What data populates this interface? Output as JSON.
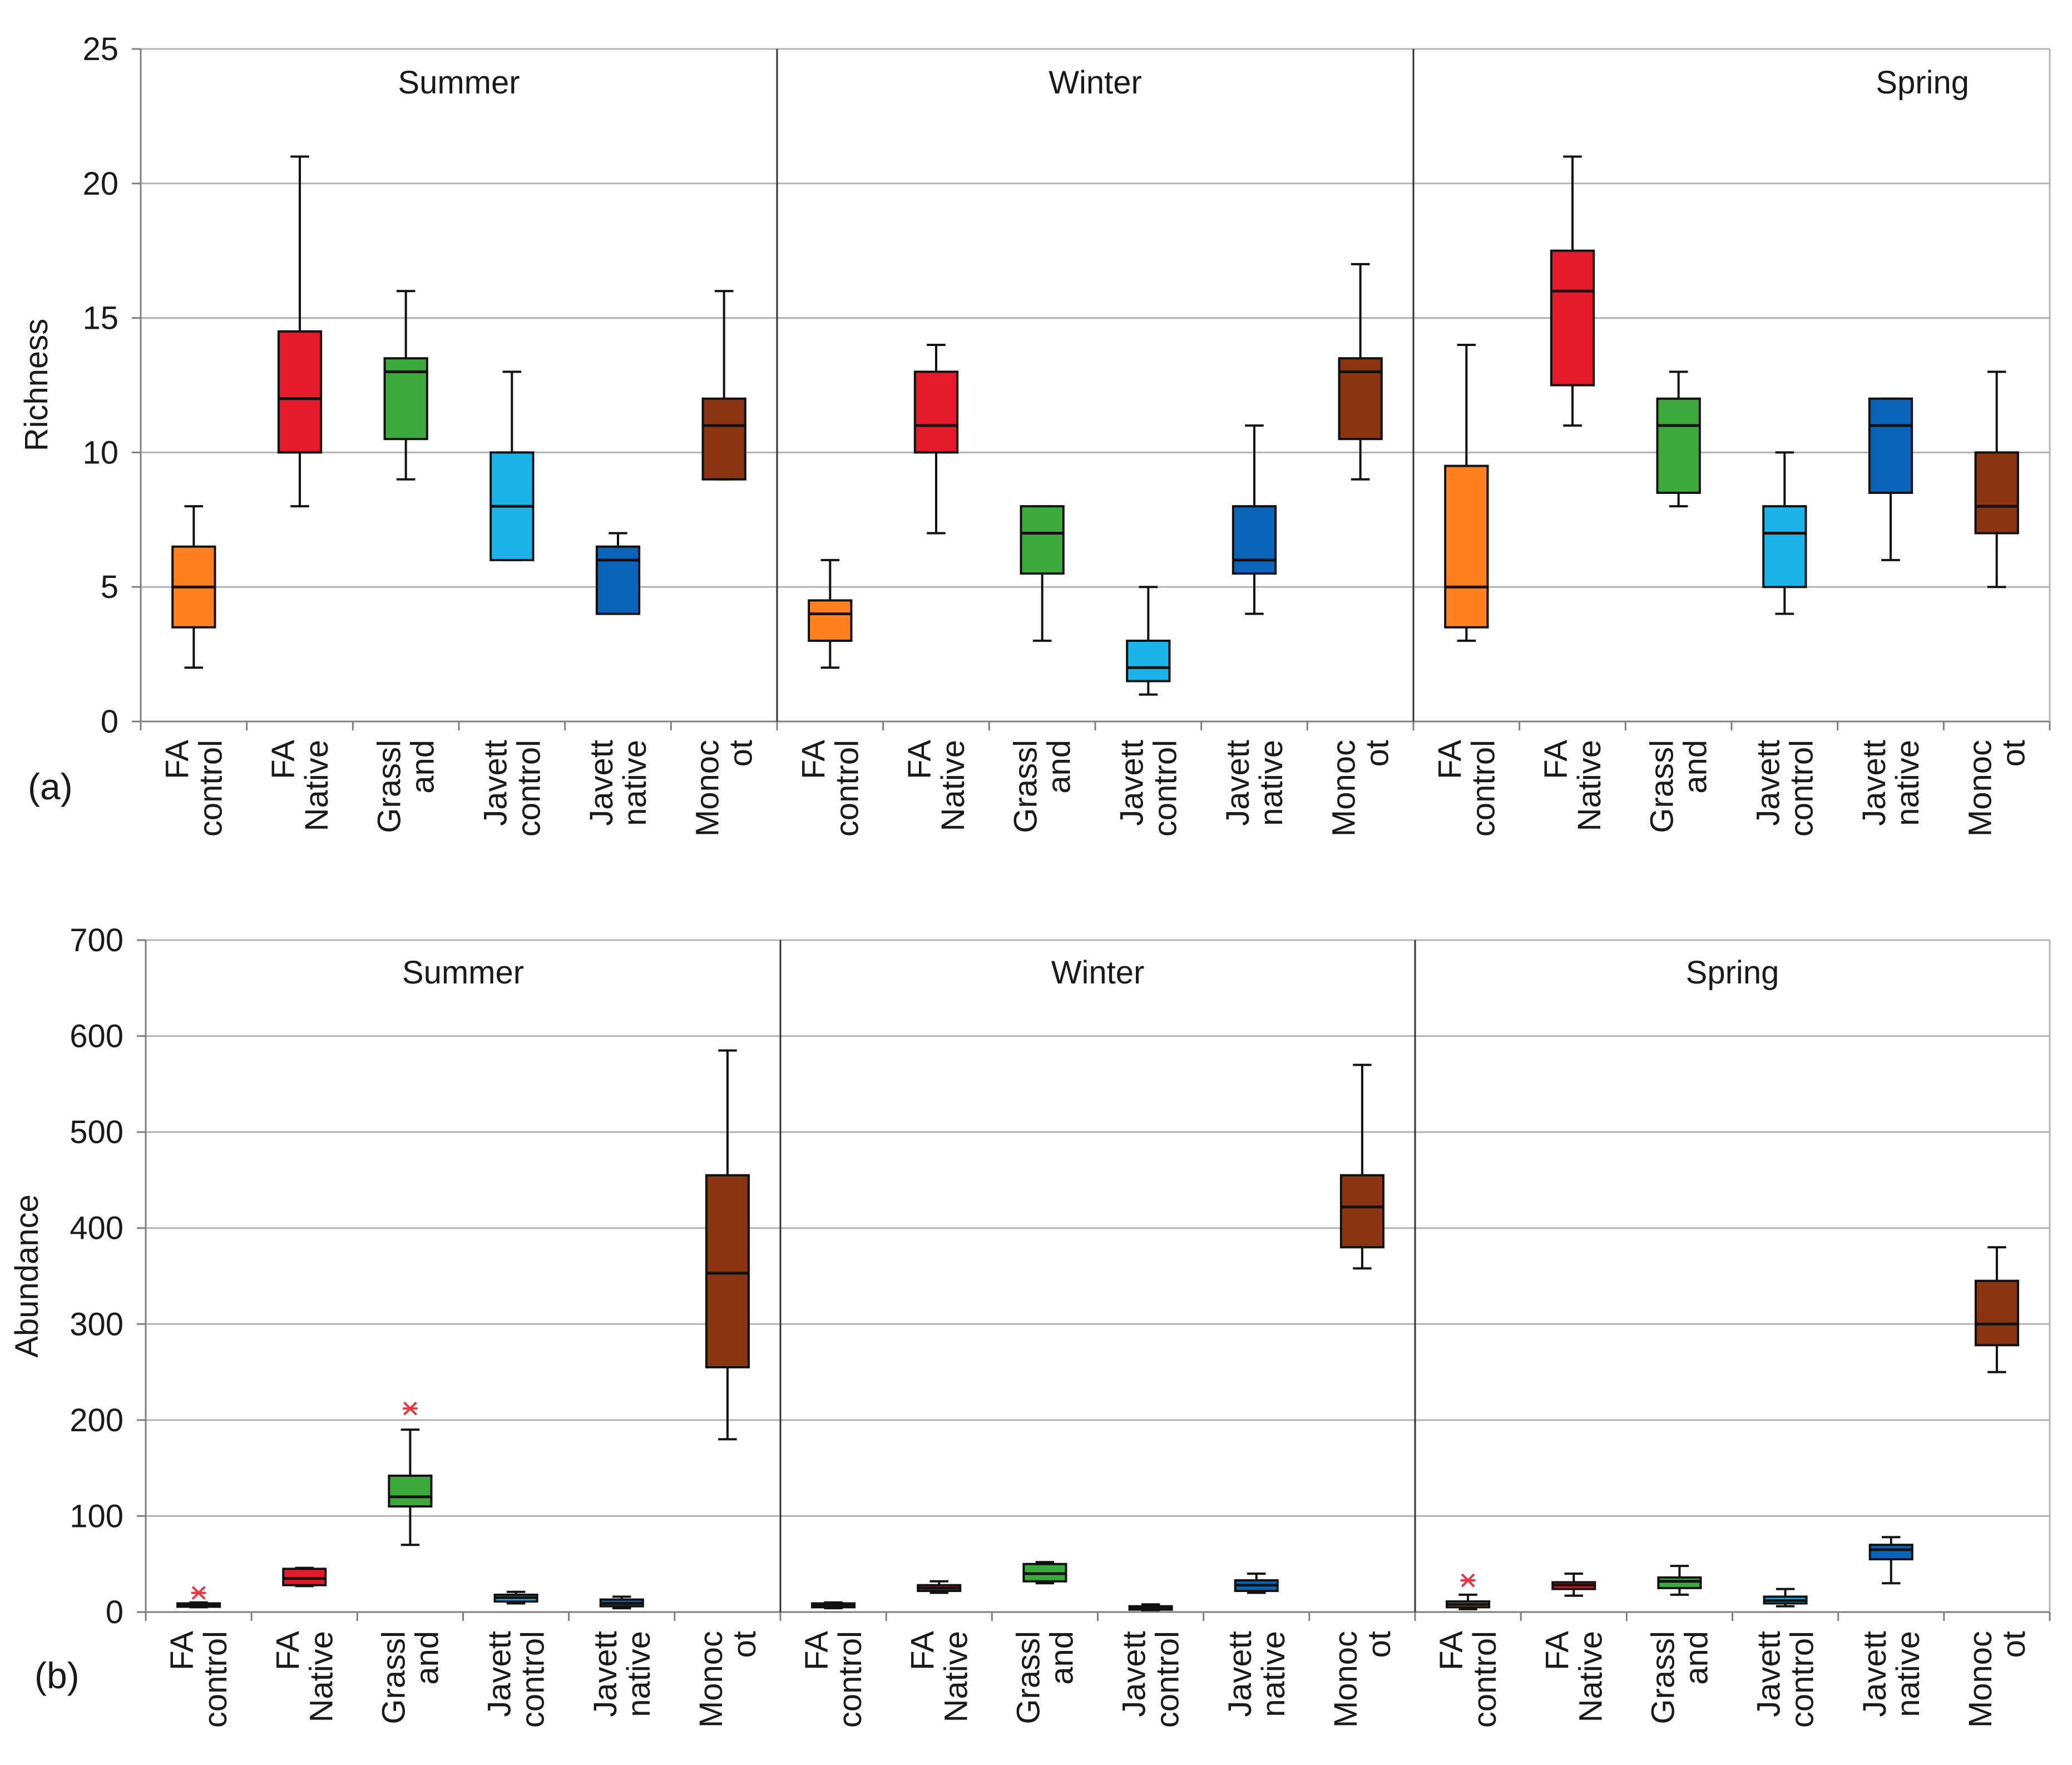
{
  "chart_data": [
    {
      "type": "boxplot",
      "panel_label": "(a)",
      "ylabel": "Richness",
      "ylim": [
        0,
        25
      ],
      "yticks": [
        "0",
        "5",
        "10",
        "15",
        "20",
        "25"
      ],
      "ytick_values": [
        0,
        5,
        10,
        15,
        20,
        25
      ],
      "grid": true,
      "categories": [
        [
          "FA",
          "control"
        ],
        [
          "FA",
          "Native"
        ],
        [
          "Grassl",
          "and"
        ],
        [
          "Javett",
          "control"
        ],
        [
          "Javett",
          "native"
        ],
        [
          "Monoc",
          "ot"
        ]
      ],
      "category_colors": [
        "#ff8020",
        "#e31a2a",
        "#3caa3c",
        "#1cb4e8",
        "#0a64b9",
        "#8b3412"
      ],
      "groups": [
        {
          "name": "Summer",
          "boxes": [
            {
              "min": 2,
              "q1": 3.5,
              "median": 5,
              "q3": 6.5,
              "max": 8,
              "outliers": []
            },
            {
              "min": 8,
              "q1": 10,
              "median": 12,
              "q3": 14.5,
              "max": 21,
              "outliers": []
            },
            {
              "min": 9,
              "q1": 10.5,
              "median": 13,
              "q3": 13.5,
              "max": 16,
              "outliers": []
            },
            {
              "min": 6,
              "q1": 6,
              "median": 8,
              "q3": 10,
              "max": 13,
              "outliers": []
            },
            {
              "min": 4,
              "q1": 4,
              "median": 6,
              "q3": 6.5,
              "max": 7,
              "outliers": []
            },
            {
              "min": 9,
              "q1": 9,
              "median": 11,
              "q3": 12,
              "max": 16,
              "outliers": []
            }
          ]
        },
        {
          "name": "Winter",
          "boxes": [
            {
              "min": 2,
              "q1": 3,
              "median": 4,
              "q3": 4.5,
              "max": 6,
              "outliers": []
            },
            {
              "min": 7,
              "q1": 10,
              "median": 11,
              "q3": 13,
              "max": 14,
              "outliers": []
            },
            {
              "min": 3,
              "q1": 5.5,
              "median": 7,
              "q3": 8,
              "max": 8,
              "outliers": []
            },
            {
              "min": 1,
              "q1": 1.5,
              "median": 2,
              "q3": 3,
              "max": 5,
              "outliers": []
            },
            {
              "min": 4,
              "q1": 5.5,
              "median": 6,
              "q3": 8,
              "max": 11,
              "outliers": []
            },
            {
              "min": 9,
              "q1": 10.5,
              "median": 13,
              "q3": 13.5,
              "max": 17,
              "outliers": []
            }
          ]
        },
        {
          "name": "Spring",
          "boxes": [
            {
              "min": 3,
              "q1": 3.5,
              "median": 5,
              "q3": 9.5,
              "max": 14,
              "outliers": []
            },
            {
              "min": 11,
              "q1": 12.5,
              "median": 16,
              "q3": 17.5,
              "max": 21,
              "outliers": []
            },
            {
              "min": 8,
              "q1": 8.5,
              "median": 11,
              "q3": 12,
              "max": 13,
              "outliers": []
            },
            {
              "min": 4,
              "q1": 5,
              "median": 7,
              "q3": 8,
              "max": 10,
              "outliers": []
            },
            {
              "min": 6,
              "q1": 8.5,
              "median": 11,
              "q3": 12,
              "max": 12,
              "outliers": []
            },
            {
              "min": 5,
              "q1": 7,
              "median": 8,
              "q3": 10,
              "max": 13,
              "outliers": []
            }
          ]
        }
      ]
    },
    {
      "type": "boxplot",
      "panel_label": "(b)",
      "ylabel": "Abundance",
      "ylim": [
        0,
        700
      ],
      "yticks": [
        "0",
        "100",
        "200",
        "300",
        "400",
        "500",
        "600",
        "700"
      ],
      "ytick_values": [
        0,
        100,
        200,
        300,
        400,
        500,
        600,
        700
      ],
      "grid": true,
      "categories": [
        [
          "FA",
          "control"
        ],
        [
          "FA",
          "Native"
        ],
        [
          "Grassl",
          "and"
        ],
        [
          "Javett",
          "control"
        ],
        [
          "Javett",
          "native"
        ],
        [
          "Monoc",
          "ot"
        ]
      ],
      "category_colors": [
        "#ff8020",
        "#e31a2a",
        "#3caa3c",
        "#1cb4e8",
        "#0a64b9",
        "#8b3412"
      ],
      "groups": [
        {
          "name": "Summer",
          "boxes": [
            {
              "min": 5,
              "q1": 6,
              "median": 8,
              "q3": 9,
              "max": 10,
              "outliers": [
                20
              ]
            },
            {
              "min": 27,
              "q1": 28,
              "median": 35,
              "q3": 45,
              "max": 46,
              "outliers": []
            },
            {
              "min": 70,
              "q1": 110,
              "median": 120,
              "q3": 142,
              "max": 190,
              "outliers": [
                212
              ]
            },
            {
              "min": 9,
              "q1": 11,
              "median": 15,
              "q3": 18,
              "max": 21,
              "outliers": []
            },
            {
              "min": 4,
              "q1": 6,
              "median": 9,
              "q3": 13,
              "max": 16,
              "outliers": []
            },
            {
              "min": 180,
              "q1": 255,
              "median": 353,
              "q3": 455,
              "max": 585,
              "outliers": []
            }
          ]
        },
        {
          "name": "Winter",
          "boxes": [
            {
              "min": 4,
              "q1": 5,
              "median": 7,
              "q3": 9,
              "max": 10,
              "outliers": []
            },
            {
              "min": 20,
              "q1": 22,
              "median": 25,
              "q3": 28,
              "max": 32,
              "outliers": []
            },
            {
              "min": 30,
              "q1": 32,
              "median": 40,
              "q3": 50,
              "max": 52,
              "outliers": []
            },
            {
              "min": 2,
              "q1": 3,
              "median": 4,
              "q3": 6,
              "max": 8,
              "outliers": []
            },
            {
              "min": 20,
              "q1": 22,
              "median": 28,
              "q3": 33,
              "max": 40,
              "outliers": []
            },
            {
              "min": 358,
              "q1": 380,
              "median": 422,
              "q3": 455,
              "max": 570,
              "outliers": []
            }
          ]
        },
        {
          "name": "Spring",
          "boxes": [
            {
              "min": 3,
              "q1": 5,
              "median": 8,
              "q3": 11,
              "max": 18,
              "outliers": [
                33
              ]
            },
            {
              "min": 17,
              "q1": 24,
              "median": 28,
              "q3": 31,
              "max": 40,
              "outliers": []
            },
            {
              "min": 18,
              "q1": 25,
              "median": 32,
              "q3": 36,
              "max": 48,
              "outliers": []
            },
            {
              "min": 6,
              "q1": 9,
              "median": 12,
              "q3": 16,
              "max": 24,
              "outliers": []
            },
            {
              "min": 30,
              "q1": 55,
              "median": 65,
              "q3": 70,
              "max": 78,
              "outliers": []
            },
            {
              "min": 250,
              "q1": 278,
              "median": 300,
              "q3": 345,
              "max": 380,
              "outliers": []
            }
          ]
        }
      ]
    }
  ]
}
